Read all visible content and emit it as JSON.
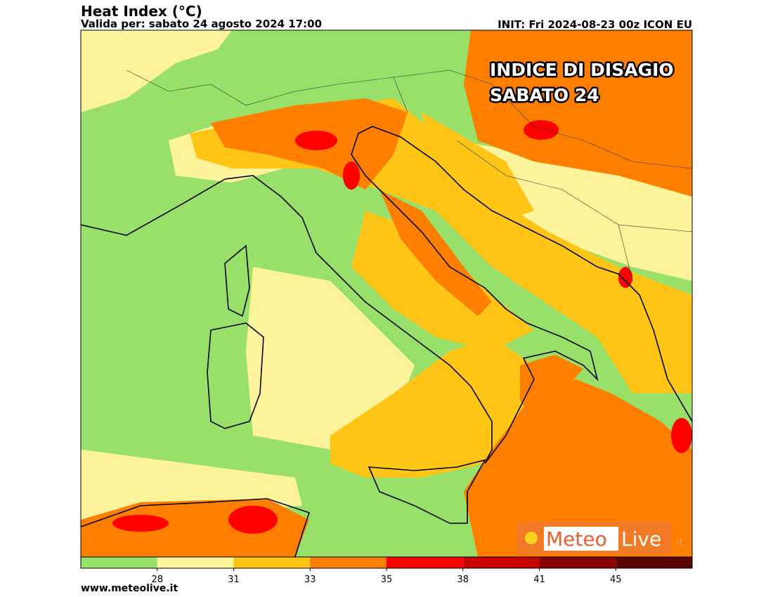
{
  "header": {
    "title": "Heat Index (°C)",
    "valid": "Valida per: sabato 24 agosto 2024 17:00",
    "init": "INIT: Fri 2024-08-23 00z ICON EU"
  },
  "overlay": {
    "line1": "INDICE DI DISAGIO",
    "line2": "SABATO 24"
  },
  "logo": {
    "meteo": "Meteo",
    "live": "Live",
    "tld": ".it"
  },
  "colorbar": {
    "ticks": [
      28,
      31,
      33,
      35,
      38,
      41,
      45
    ],
    "colors": [
      "#98e06a",
      "#fdf39b",
      "#fec516",
      "#fe7f00",
      "#fe0000",
      "#c70000",
      "#8a0000",
      "#5c0000"
    ]
  },
  "footer": "www.meteolive.it"
}
